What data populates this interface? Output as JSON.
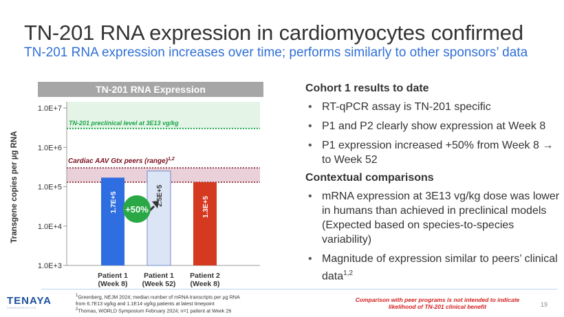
{
  "slide": {
    "title": "TN-201 RNA expression in cardiomyocytes confirmed",
    "subtitle": "TN-201 RNA expression increases over time; performs similarly to other sponsors’ data",
    "page_number": "19"
  },
  "chart_data": {
    "type": "bar",
    "title": "TN-201 RNA Expression",
    "ylabel": "Transgene copies per µg RNA",
    "yscale": "log",
    "ylim": [
      1000,
      10000000
    ],
    "yticks": [
      "1.0E+3",
      "1.0E+4",
      "1.0E+5",
      "1.0E+6",
      "1.0E+7"
    ],
    "categories": [
      {
        "line1": "Patient 1",
        "line2": "(Week 8)"
      },
      {
        "line1": "Patient 1",
        "line2": "(Week 52)"
      },
      {
        "line1": "Patient 2",
        "line2": "(Week 8)"
      }
    ],
    "values": [
      170000,
      250000,
      130000
    ],
    "value_labels": [
      "1.7E+5",
      "2.5E+5",
      "1.3E+5"
    ],
    "bar_colors": [
      "#2f6ee0",
      "#dbe5f6",
      "#d5391f"
    ],
    "bar_label_colors": [
      "#ffffff",
      "#333333",
      "#ffffff"
    ],
    "preclinical": {
      "label": "TN-201 preclinical level at 3E13 vg/kg",
      "level": 3000000,
      "color": "#1aa64a"
    },
    "peers": {
      "label": "Cardiac AAV Gtx peers (range)",
      "label_sup": "1,2",
      "low": 130000,
      "high": 300000,
      "color": "#7a1020"
    },
    "annotation": {
      "label": "+50%",
      "color": "#2aa845"
    }
  },
  "right_panel": {
    "section1_title": "Cohort 1 results to date",
    "section1_bullets": [
      "RT-qPCR assay is TN-201 specific",
      "P1 and P2 clearly show expression at Week 8",
      "P1 expression increased +50% from Week 8 → to Week 52"
    ],
    "section2_title": "Contextual comparisons",
    "section2_bullets": [
      "mRNA expression at 3E13 vg/kg dose was lower in humans than achieved in preclinical models (Expected based on species-to-species variability)",
      "Magnitude of expression similar to peers’ clinical data"
    ],
    "section2_bullet2_sup": "1,2"
  },
  "footer": {
    "logo_text": "TENAYA",
    "logo_subtext": "THERAPEUTICS",
    "footnote1_sup": "1",
    "footnote1_line1": "Greenberg, NEJM 2024; median number of mRNA transcripts per µg RNA",
    "footnote1_line2": "from 6.7E13 vg/kg and 1.1E14 vg/kg patients at latest timepoint",
    "footnote2_sup": "2",
    "footnote2_line1": "Thomas, WORLD Symposium February 2024; n=1 patient at Week 26",
    "disclaimer": "Comparison with peer programs is not intended to indicate likelihood of TN-201 clinical benefit"
  },
  "colors": {
    "title": "#333333",
    "subtitle": "#2f6fd6",
    "chart_header_bg": "#a6a6a6",
    "preclinical_band": "#e4f4e6",
    "peer_band": "#ead0d8",
    "disclaimer": "#d31c1c"
  }
}
